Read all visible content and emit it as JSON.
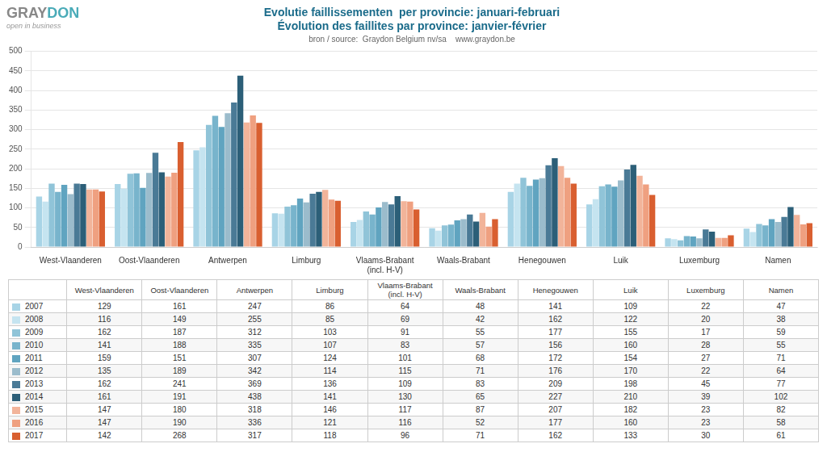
{
  "chart_data": {
    "type": "bar",
    "title": [
      "Evolutie faillissementen  per provincie: januari-februari",
      "Évolution des faillites par province: janvier-février"
    ],
    "subtitle": "bron / source:  Graydon Belgium nv/sa    www.graydon.be",
    "annotations": [
      {
        "text": "GRAY",
        "color": "#888888"
      },
      {
        "text": "DON",
        "color": "#4AABB8"
      },
      {
        "text": "open in business"
      }
    ],
    "categories": [
      "West-Vlaanderen",
      "Oost-Vlaanderen",
      "Antwerpen",
      "Limburg",
      "Vlaams-Brabant\n(incl. H-V)",
      "Waals-Brabant",
      "Henegouwen",
      "Luik",
      "Luxemburg",
      "Namen"
    ],
    "series": [
      {
        "name": "2007",
        "color": "#A8D4E6",
        "values": [
          129,
          161,
          247,
          86,
          64,
          48,
          141,
          109,
          22,
          47
        ]
      },
      {
        "name": "2008",
        "color": "#C5E4F0",
        "values": [
          116,
          149,
          255,
          85,
          69,
          42,
          162,
          122,
          20,
          38
        ]
      },
      {
        "name": "2009",
        "color": "#90C4D8",
        "values": [
          162,
          187,
          312,
          103,
          91,
          55,
          177,
          155,
          17,
          59
        ]
      },
      {
        "name": "2010",
        "color": "#78B4CC",
        "values": [
          141,
          188,
          335,
          107,
          83,
          57,
          156,
          160,
          28,
          55
        ]
      },
      {
        "name": "2011",
        "color": "#60A4C0",
        "values": [
          159,
          151,
          307,
          124,
          101,
          68,
          172,
          154,
          27,
          71
        ]
      },
      {
        "name": "2012",
        "color": "#9BBCCC",
        "values": [
          135,
          189,
          342,
          114,
          115,
          71,
          176,
          170,
          22,
          64
        ]
      },
      {
        "name": "2013",
        "color": "#4A7A96",
        "values": [
          162,
          241,
          369,
          136,
          109,
          83,
          209,
          198,
          45,
          77
        ]
      },
      {
        "name": "2014",
        "color": "#2C5F78",
        "values": [
          161,
          191,
          438,
          141,
          130,
          65,
          227,
          210,
          39,
          102
        ]
      },
      {
        "name": "2015",
        "color": "#F2B49A",
        "values": [
          147,
          180,
          318,
          146,
          117,
          87,
          207,
          182,
          23,
          82
        ]
      },
      {
        "name": "2016",
        "color": "#EFA080",
        "values": [
          147,
          190,
          336,
          121,
          116,
          52,
          177,
          160,
          23,
          58
        ]
      },
      {
        "name": "2017",
        "color": "#D95F30",
        "values": [
          142,
          268,
          317,
          118,
          96,
          71,
          162,
          133,
          30,
          61
        ]
      }
    ],
    "ylim": [
      0,
      500
    ],
    "yticks": [
      0,
      50,
      100,
      150,
      200,
      250,
      300,
      350,
      400,
      450,
      500
    ],
    "grid": true
  }
}
